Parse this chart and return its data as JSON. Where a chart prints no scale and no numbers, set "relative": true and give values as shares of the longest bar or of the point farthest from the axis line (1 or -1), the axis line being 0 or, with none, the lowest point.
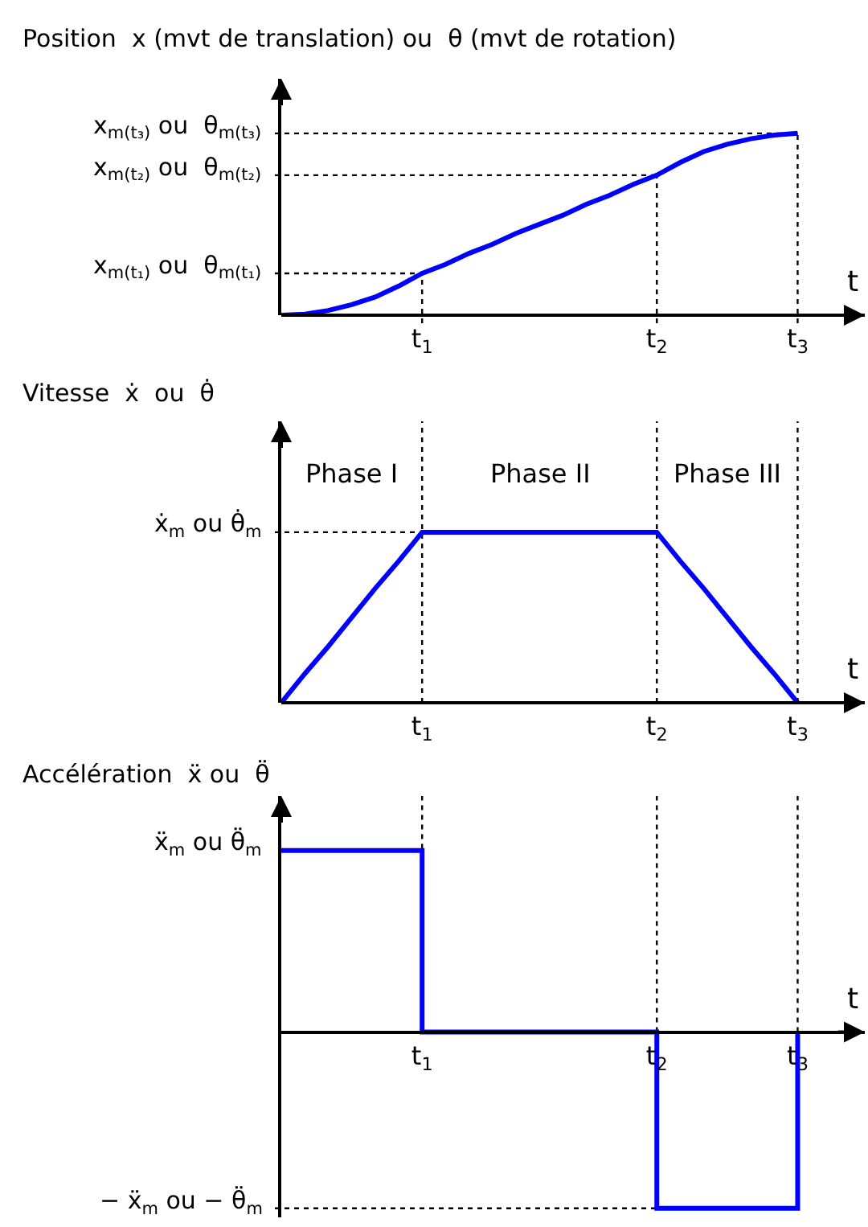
{
  "chart_data": [
    {
      "type": "line",
      "title": "Position  x (mvt de translation) ou  θ (mvt de rotation)",
      "xlabel": "t",
      "relative": true,
      "categories": [
        null,
        null,
        null,
        null,
        null,
        null,
        "t$_{1}$",
        null,
        null,
        null,
        null,
        null,
        null,
        null,
        null,
        null,
        "t$_{2}$",
        null,
        null,
        null,
        null,
        null,
        "t$_{3}$"
      ],
      "series": [
        {
          "color": "#0000ff",
          "values": [
            0,
            0.006,
            0.026,
            0.058,
            0.1,
            0.16,
            0.23,
            0.28,
            0.34,
            0.39,
            0.45,
            0.5,
            0.55,
            0.61,
            0.66,
            0.72,
            0.77,
            0.84,
            0.9,
            0.94,
            0.97,
            0.99,
            1
          ]
        }
      ],
      "ref_lines": [
        {
          "axis": "y",
          "value": 1,
          "label": "x$_{m(t₃)}$ ou  θ$_{m(t₃)}$",
          "line_style": "dotted"
        },
        {
          "axis": "y",
          "value": 0.77,
          "label": "x$_{m(t₂)}$ ou  θ$_{m(t₂)}$",
          "line_style": "dotted"
        },
        {
          "axis": "y",
          "value": 0.23,
          "label": "x$_{m(t₁)}$ ou  θ$_{m(t₁)}$",
          "line_style": "dotted"
        },
        {
          "axis": "x",
          "value": "t$_{1}$",
          "line_style": "dotted"
        },
        {
          "axis": "x",
          "value": "t$_{2}$",
          "line_style": "dotted"
        },
        {
          "axis": "x",
          "value": "t$_{3}$",
          "line_style": "dotted"
        }
      ]
    },
    {
      "type": "line",
      "title": "Vitesse  ẋ  ou  θ̇",
      "xlabel": "t",
      "relative": true,
      "categories": [
        null,
        null,
        null,
        null,
        null,
        null,
        "t$_{1}$",
        null,
        null,
        null,
        null,
        null,
        null,
        null,
        null,
        null,
        "t$_{2}$",
        null,
        null,
        null,
        null,
        null,
        "t$_{3}$"
      ],
      "series": [
        {
          "color": "#0000ff",
          "values": [
            0,
            0.17,
            0.33,
            0.5,
            0.67,
            0.83,
            1,
            1,
            1,
            1,
            1,
            1,
            1,
            1,
            1,
            1,
            1,
            0.83,
            0.67,
            0.5,
            0.33,
            0.17,
            0
          ]
        }
      ],
      "ref_lines": [
        {
          "axis": "y",
          "value": 1,
          "label": "ẋ$_{m}$ ou θ̇$_{m}$",
          "line_style": "dotted"
        },
        {
          "axis": "x",
          "value": "t$_{1}$",
          "line_style": "dotted"
        },
        {
          "axis": "x",
          "value": "t$_{2}$",
          "line_style": "dotted"
        },
        {
          "axis": "x",
          "value": "t$_{3}$",
          "line_style": "dotted"
        }
      ],
      "annotations": [
        "Phase I",
        "Phase II",
        "Phase III"
      ]
    },
    {
      "type": "step",
      "title": "Accélération  ẍ ou  θ̈",
      "xlabel": "t",
      "relative": true,
      "categories": [
        null,
        null,
        null,
        null,
        null,
        null,
        "t$_{1}$",
        null,
        null,
        null,
        null,
        null,
        null,
        null,
        null,
        null,
        "t$_{2}$",
        null,
        null,
        null,
        null,
        null,
        "t$_{3}$"
      ],
      "series": [
        {
          "color": "#0000ff",
          "values": [
            1,
            1,
            1,
            1,
            1,
            1,
            0,
            0,
            0,
            0,
            0,
            0,
            0,
            0,
            0,
            0,
            -0.97,
            -0.97,
            -0.97,
            -0.97,
            -0.97,
            -0.97,
            0
          ]
        }
      ],
      "ref_lines": [
        {
          "axis": "y",
          "value": -0.97,
          "label": "− ẍ$_{m}$ ou − θ̈$_{m}$",
          "line_style": "dotted"
        },
        {
          "axis": "x",
          "value": "t$_{1}$",
          "line_style": "dotted"
        },
        {
          "axis": "x",
          "value": "t$_{2}$",
          "line_style": "dotted"
        },
        {
          "axis": "x",
          "value": "t$_{3}$",
          "line_style": "dotted"
        }
      ],
      "annotations": [
        "ẍ$_{m}$ ou θ̈$_{m}$"
      ]
    }
  ]
}
